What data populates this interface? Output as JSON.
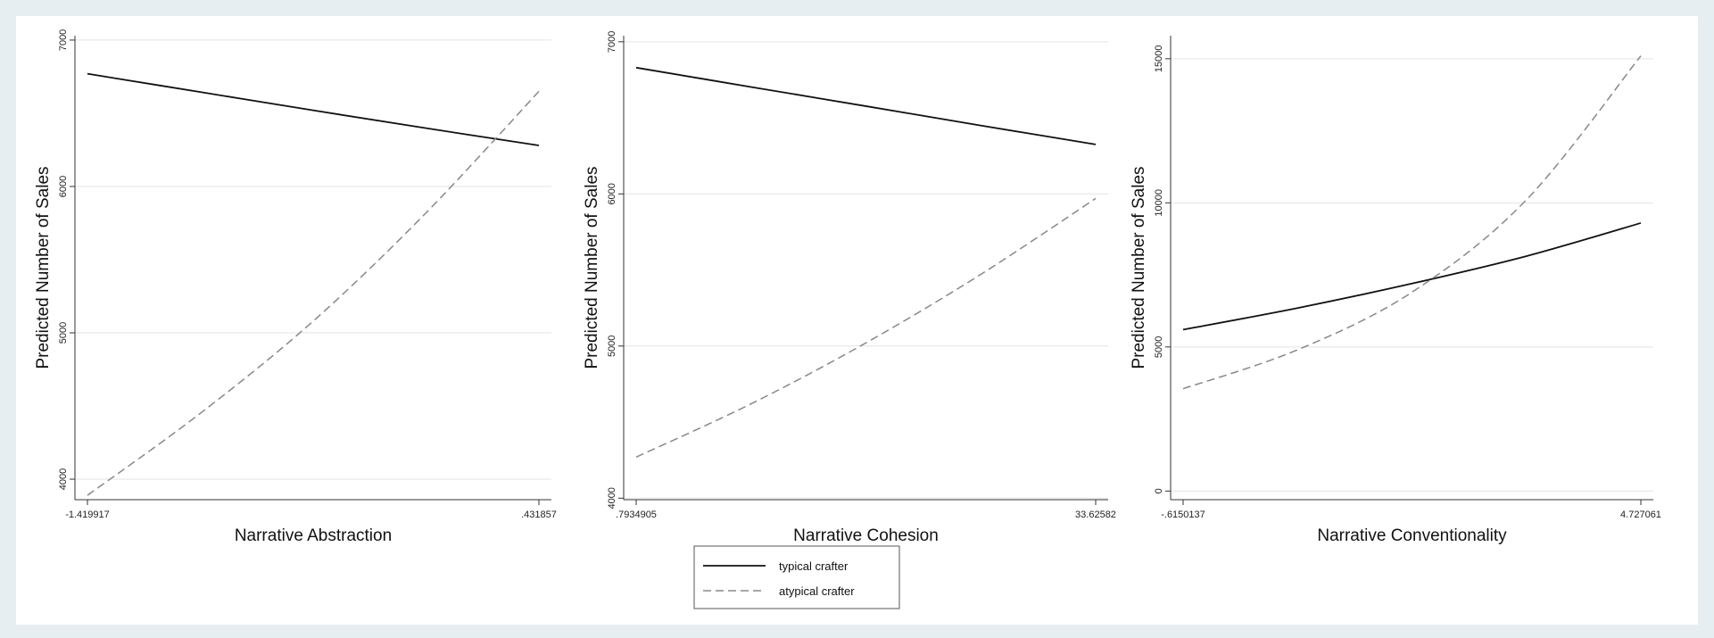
{
  "chart_data": [
    {
      "type": "line",
      "xlabel": "Narrative Abstraction",
      "ylabel": "Predicted Number of Sales",
      "xlim": [
        -1.419917,
        0.431857
      ],
      "ylim": [
        3860,
        7030
      ],
      "xticks": [
        {
          "value": -1.419917,
          "label": "-1.419917"
        },
        {
          "value": 0.431857,
          "label": ".431857"
        }
      ],
      "yticks": [
        {
          "value": 4000,
          "label": "4000"
        },
        {
          "value": 5000,
          "label": "5000"
        },
        {
          "value": 6000,
          "label": "6000"
        },
        {
          "value": 7000,
          "label": "7000"
        }
      ],
      "grid": true,
      "series": [
        {
          "name": "typical crafter",
          "style": "solid",
          "color": "#111111",
          "points": [
            [
              -1.419917,
              6770
            ],
            [
              -0.957,
              6645
            ],
            [
              -0.494,
              6520
            ],
            [
              -0.031,
              6398
            ],
            [
              0.431857,
              6280
            ]
          ]
        },
        {
          "name": "atypical crafter",
          "style": "dashed",
          "color": "#888888",
          "points": [
            [
              -1.419917,
              3890
            ],
            [
              -0.957,
              4450
            ],
            [
              -0.494,
              5080
            ],
            [
              -0.031,
              5820
            ],
            [
              0.431857,
              6650
            ]
          ]
        }
      ]
    },
    {
      "type": "line",
      "xlabel": "Narrative Cohesion",
      "ylabel": "Predicted Number of Sales",
      "xlim": [
        0.7934905,
        33.62582
      ],
      "ylim": [
        3990,
        7040
      ],
      "xticks": [
        {
          "value": 0.7934905,
          "label": ".7934905"
        },
        {
          "value": 33.62582,
          "label": "33.62582"
        }
      ],
      "yticks": [
        {
          "value": 4000,
          "label": "4000"
        },
        {
          "value": 5000,
          "label": "5000"
        },
        {
          "value": 6000,
          "label": "6000"
        },
        {
          "value": 7000,
          "label": "7000"
        }
      ],
      "grid": true,
      "series": [
        {
          "name": "typical crafter",
          "style": "solid",
          "color": "#111111",
          "points": [
            [
              0.7934905,
              6830
            ],
            [
              9.0,
              6703
            ],
            [
              17.2,
              6577
            ],
            [
              25.4,
              6450
            ],
            [
              33.62582,
              6325
            ]
          ]
        },
        {
          "name": "atypical crafter",
          "style": "dashed",
          "color": "#888888",
          "points": [
            [
              0.7934905,
              4270
            ],
            [
              9.0,
              4620
            ],
            [
              17.2,
              5020
            ],
            [
              25.4,
              5470
            ],
            [
              33.62582,
              5970
            ]
          ]
        }
      ]
    },
    {
      "type": "line",
      "xlabel": "Narrative Conventionality",
      "ylabel": "Predicted Number of Sales",
      "xlim": [
        -0.6150137,
        4.727061
      ],
      "ylim": [
        -300,
        15800
      ],
      "xticks": [
        {
          "value": -0.6150137,
          "label": "-.6150137"
        },
        {
          "value": 4.727061,
          "label": "4.727061"
        }
      ],
      "yticks": [
        {
          "value": 0,
          "label": "0"
        },
        {
          "value": 5000,
          "label": "5000"
        },
        {
          "value": 10000,
          "label": "10000"
        },
        {
          "value": 15000,
          "label": "15000"
        }
      ],
      "grid": true,
      "series": [
        {
          "name": "typical crafter",
          "style": "solid",
          "color": "#111111",
          "points": [
            [
              -0.6150137,
              5600
            ],
            [
              0.72,
              6350
            ],
            [
              2.056,
              7200
            ],
            [
              3.39,
              8150
            ],
            [
              4.727061,
              9300
            ]
          ]
        },
        {
          "name": "atypical crafter",
          "style": "dashed",
          "color": "#888888",
          "points": [
            [
              -0.6150137,
              3550
            ],
            [
              0.72,
              4900
            ],
            [
              2.056,
              6900
            ],
            [
              3.39,
              10100
            ],
            [
              4.727061,
              15100
            ]
          ]
        }
      ]
    }
  ],
  "legend": {
    "placement": "bottom-center",
    "entries": [
      {
        "label": "typical crafter",
        "style": "solid",
        "color": "#111111"
      },
      {
        "label": "atypical crafter",
        "style": "dashed",
        "color": "#888888"
      }
    ]
  }
}
